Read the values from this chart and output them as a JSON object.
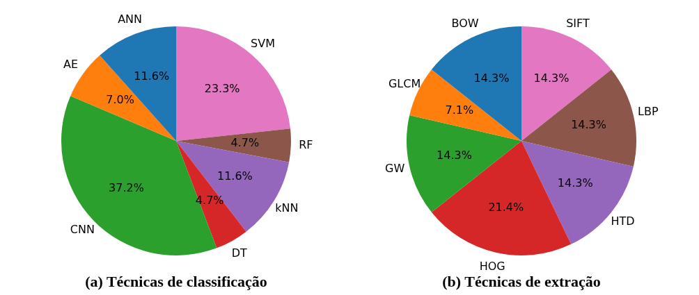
{
  "chart_data": [
    {
      "type": "pie",
      "title": "(a) Técnicas de classificação",
      "categories": [
        "ANN",
        "AE",
        "CNN",
        "DT",
        "kNN",
        "RF",
        "SVM"
      ],
      "values": [
        11.6,
        7.0,
        37.2,
        4.7,
        11.6,
        4.7,
        23.3
      ],
      "value_labels": [
        "11.6%",
        "7.0%",
        "37.2%",
        "4.7%",
        "11.6%",
        "4.7%",
        "23.3%"
      ],
      "colors": [
        "#1f77b4",
        "#ff7f0e",
        "#2ca02c",
        "#d62728",
        "#9467bd",
        "#8c564b",
        "#e377c2"
      ]
    },
    {
      "type": "pie",
      "title": "(b) Técnicas de extração",
      "categories": [
        "BOW",
        "GLCM",
        "GW",
        "HOG",
        "HTD",
        "LBP",
        "SIFT"
      ],
      "values": [
        14.3,
        7.1,
        14.3,
        21.4,
        14.3,
        14.3,
        14.3
      ],
      "value_labels": [
        "14.3%",
        "7.1%",
        "14.3%",
        "21.4%",
        "14.3%",
        "14.3%",
        "14.3%"
      ],
      "colors": [
        "#1f77b4",
        "#ff7f0e",
        "#2ca02c",
        "#d62728",
        "#9467bd",
        "#8c564b",
        "#e377c2"
      ]
    }
  ]
}
